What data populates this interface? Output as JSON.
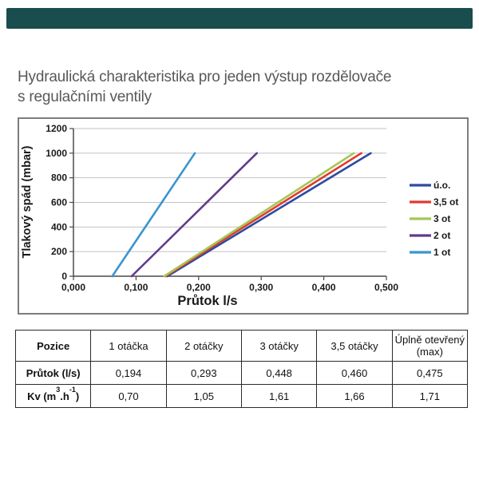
{
  "header": {
    "bar_color": "#1a4d4d"
  },
  "title": {
    "line1": "Hydraulická charakteristika pro jeden výstup rozdělovače",
    "line2": "s regulačními ventily"
  },
  "chart_data": {
    "type": "line",
    "title": "",
    "xlabel": "Průtok l/s",
    "ylabel": "Tlakový spád (mbar)",
    "xlim": [
      0,
      0.5
    ],
    "ylim": [
      0,
      1200
    ],
    "x_ticks": [
      "0,000",
      "0,100",
      "0,200",
      "0,300",
      "0,400",
      "0,500"
    ],
    "x_tick_values": [
      0,
      0.1,
      0.2,
      0.3,
      0.4,
      0.5
    ],
    "y_ticks": [
      "0",
      "200",
      "400",
      "600",
      "800",
      "1000",
      "1200"
    ],
    "y_tick_values": [
      0,
      200,
      400,
      600,
      800,
      1000,
      1200
    ],
    "grid": "horizontal",
    "grid_color": "#c2c2c2",
    "axis_color": "#4a4a4a",
    "legend_position": "right",
    "series": [
      {
        "name": "ú.o.",
        "color": "#2c4ba0",
        "points": [
          [
            0.15,
            0
          ],
          [
            0.475,
            1000
          ]
        ]
      },
      {
        "name": "3,5 ot",
        "color": "#e23a30",
        "points": [
          [
            0.147,
            0
          ],
          [
            0.46,
            1000
          ]
        ]
      },
      {
        "name": "3 ot",
        "color": "#a5c654",
        "points": [
          [
            0.145,
            0
          ],
          [
            0.448,
            1000
          ]
        ]
      },
      {
        "name": "2 ot",
        "color": "#63398f",
        "points": [
          [
            0.093,
            0
          ],
          [
            0.293,
            1000
          ]
        ]
      },
      {
        "name": "1 ot",
        "color": "#3b94d1",
        "points": [
          [
            0.062,
            0
          ],
          [
            0.194,
            1000
          ]
        ]
      }
    ]
  },
  "table": {
    "headers": [
      "Pozice",
      "1 otáčka",
      "2 otáčky",
      "3 otáčky",
      "3,5 otáčky",
      "Úplně otevřený (max)"
    ],
    "rows": [
      {
        "label": "Průtok (l/s)",
        "values": [
          "0,194",
          "0,293",
          "0,448",
          "0,460",
          "0,475"
        ]
      },
      {
        "label_parts": {
          "pre": "Kv (m",
          "sup1": "3",
          "mid": ".h",
          "sup2": "-1",
          "post": ")"
        },
        "values": [
          "0,70",
          "1,05",
          "1,61",
          "1,66",
          "1,71"
        ]
      }
    ]
  }
}
